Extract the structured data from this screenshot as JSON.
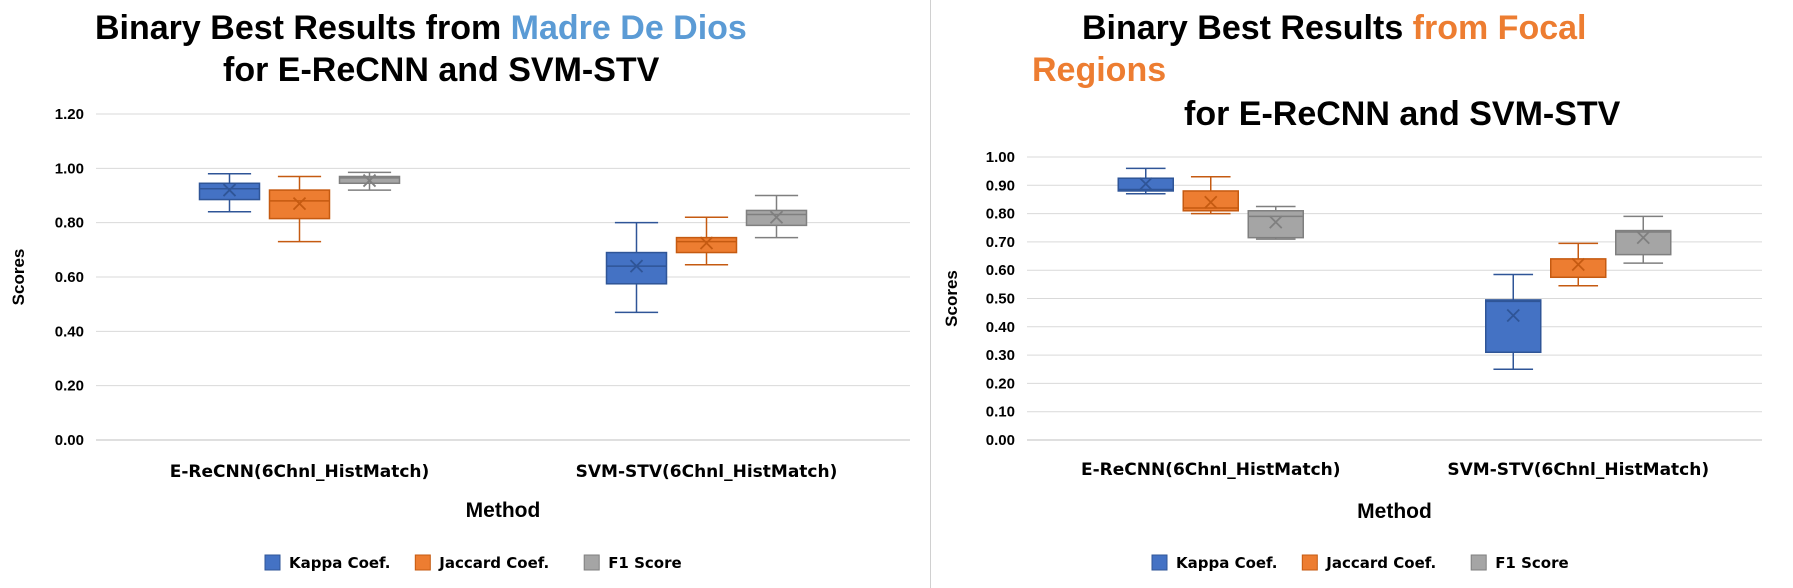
{
  "chart_data": [
    {
      "type": "box",
      "title_line1": "Binary Best Results from ",
      "title_highlight": "Madre De Dios",
      "title_line2": "for E-ReCNN and SVM-STV",
      "xlabel": "Method",
      "ylabel": "Scores",
      "ylim": [
        0,
        1.2
      ],
      "yticks": [
        "0.00",
        "0.20",
        "0.40",
        "0.60",
        "0.80",
        "1.00",
        "1.20"
      ],
      "categories": [
        "E-ReCNN(6Chnl_HistMatch)",
        "SVM-STV(6Chnl_HistMatch)"
      ],
      "series": [
        {
          "name": "Kappa Coef.",
          "boxes": [
            {
              "min": 0.84,
              "q1": 0.885,
              "median": 0.925,
              "q3": 0.945,
              "max": 0.98,
              "mean": 0.92
            },
            {
              "min": 0.47,
              "q1": 0.575,
              "median": 0.64,
              "q3": 0.69,
              "max": 0.8,
              "mean": 0.64
            }
          ]
        },
        {
          "name": "Jaccard Coef.",
          "boxes": [
            {
              "min": 0.73,
              "q1": 0.815,
              "median": 0.88,
              "q3": 0.92,
              "max": 0.97,
              "mean": 0.87
            },
            {
              "min": 0.645,
              "q1": 0.69,
              "median": 0.73,
              "q3": 0.745,
              "max": 0.82,
              "mean": 0.725
            }
          ]
        },
        {
          "name": "F1 Score",
          "boxes": [
            {
              "min": 0.92,
              "q1": 0.945,
              "median": 0.965,
              "q3": 0.97,
              "max": 0.985,
              "mean": 0.955
            },
            {
              "min": 0.745,
              "q1": 0.79,
              "median": 0.83,
              "q3": 0.845,
              "max": 0.9,
              "mean": 0.82
            }
          ]
        }
      ],
      "legend_position": "bottom",
      "grid": true
    },
    {
      "type": "box",
      "title_line1": "Binary Best Results ",
      "title_highlight": "from Focal Regions",
      "title_line2": "for E-ReCNN and SVM-STV",
      "xlabel": "Method",
      "ylabel": "Scores",
      "ylim": [
        0,
        1.0
      ],
      "yticks": [
        "0.00",
        "0.10",
        "0.20",
        "0.30",
        "0.40",
        "0.50",
        "0.60",
        "0.70",
        "0.80",
        "0.90",
        "1.00"
      ],
      "categories": [
        "E-ReCNN(6Chnl_HistMatch)",
        "SVM-STV(6Chnl_HistMatch)"
      ],
      "series": [
        {
          "name": "Kappa Coef.",
          "boxes": [
            {
              "min": 0.87,
              "q1": 0.88,
              "median": 0.885,
              "q3": 0.925,
              "max": 0.96,
              "mean": 0.905
            },
            {
              "min": 0.25,
              "q1": 0.31,
              "median": 0.49,
              "q3": 0.495,
              "max": 0.585,
              "mean": 0.44
            }
          ]
        },
        {
          "name": "Jaccard Coef.",
          "boxes": [
            {
              "min": 0.8,
              "q1": 0.81,
              "median": 0.82,
              "q3": 0.88,
              "max": 0.93,
              "mean": 0.84
            },
            {
              "min": 0.545,
              "q1": 0.575,
              "median": 0.575,
              "q3": 0.64,
              "max": 0.695,
              "mean": 0.62
            }
          ]
        },
        {
          "name": "F1 Score",
          "boxes": [
            {
              "min": 0.71,
              "q1": 0.715,
              "median": 0.79,
              "q3": 0.81,
              "max": 0.825,
              "mean": 0.77
            },
            {
              "min": 0.625,
              "q1": 0.655,
              "median": 0.735,
              "q3": 0.74,
              "max": 0.79,
              "mean": 0.715
            }
          ]
        }
      ],
      "legend_position": "bottom",
      "grid": true
    }
  ],
  "colors": {
    "series": [
      "#4472C4",
      "#ED7D31",
      "#A5A5A5"
    ],
    "series_dark": [
      "#2F5597",
      "#C55A11",
      "#7F7F7F"
    ],
    "title_highlight_left": "#5B9BD5",
    "title_highlight_right": "#ED7D31",
    "grid": "#D9D9D9"
  }
}
